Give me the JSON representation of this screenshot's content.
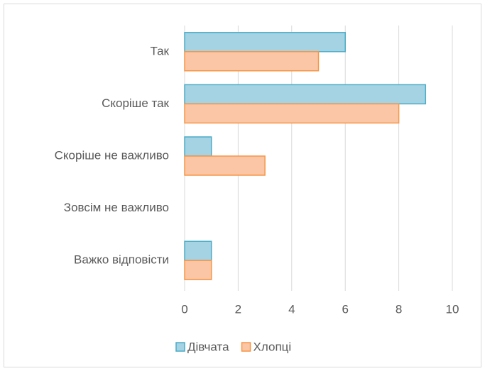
{
  "chart_data": {
    "type": "barh",
    "categories": [
      "Так",
      "Скоріше так",
      "Скоріше не важливо",
      "Зовсім не важливо",
      "Важко відповісти"
    ],
    "series": [
      {
        "name": "Дівчата",
        "color": "#a5d3e4",
        "stroke": "#4bacc6",
        "values": [
          6,
          9,
          1,
          0,
          1
        ]
      },
      {
        "name": "Хлопці",
        "color": "#fbc6a6",
        "stroke": "#f79646",
        "values": [
          5,
          8,
          3,
          0,
          1
        ]
      }
    ],
    "xlim": [
      0,
      10
    ],
    "xticks": [
      0,
      2,
      4,
      6,
      8,
      10
    ],
    "grid": true,
    "legend": "bottom"
  }
}
